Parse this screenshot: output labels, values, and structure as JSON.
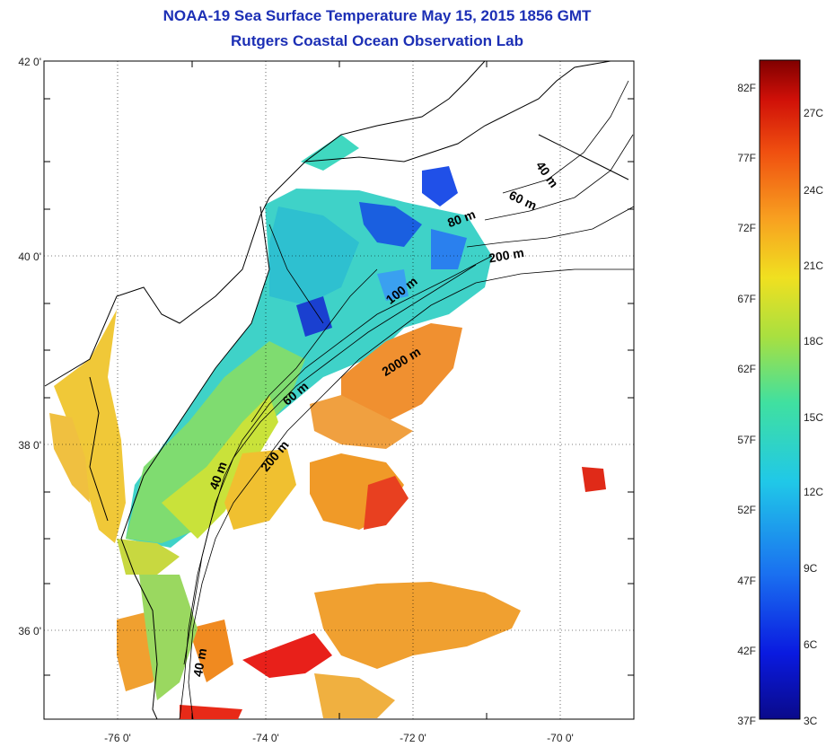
{
  "title": {
    "line1": "NOAA-19 Sea Surface Temperature May 15, 2015 1856 GMT",
    "line2": "Rutgers Coastal Ocean Observation Lab"
  },
  "axes": {
    "lat_labels": [
      "42 0'",
      "40 0'",
      "38 0'",
      "36 0'"
    ],
    "lon_labels": [
      "-76 0'",
      "-74 0'",
      "-72 0'",
      "-70 0'"
    ]
  },
  "contour_labels": [
    "40 m",
    "60 m",
    "80 m",
    "200 m",
    "100 m",
    "2000 m",
    "60 m",
    "200 m",
    "40 m",
    "40 m"
  ],
  "colorbar": {
    "fahrenheit_labels": [
      "82F",
      "77F",
      "72F",
      "67F",
      "62F",
      "57F",
      "52F",
      "47F",
      "42F",
      "37F"
    ],
    "celsius_labels": [
      "27C",
      "24C",
      "21C",
      "18C",
      "15C",
      "12C",
      "9C",
      "6C",
      "3C"
    ]
  },
  "colors": {
    "title": "#1c2fb5",
    "cold": "#0a1a9a",
    "cool": "#3fd2c8",
    "mild": "#c9e23a",
    "warm": "#f0a020",
    "hot": "#e0201a"
  }
}
